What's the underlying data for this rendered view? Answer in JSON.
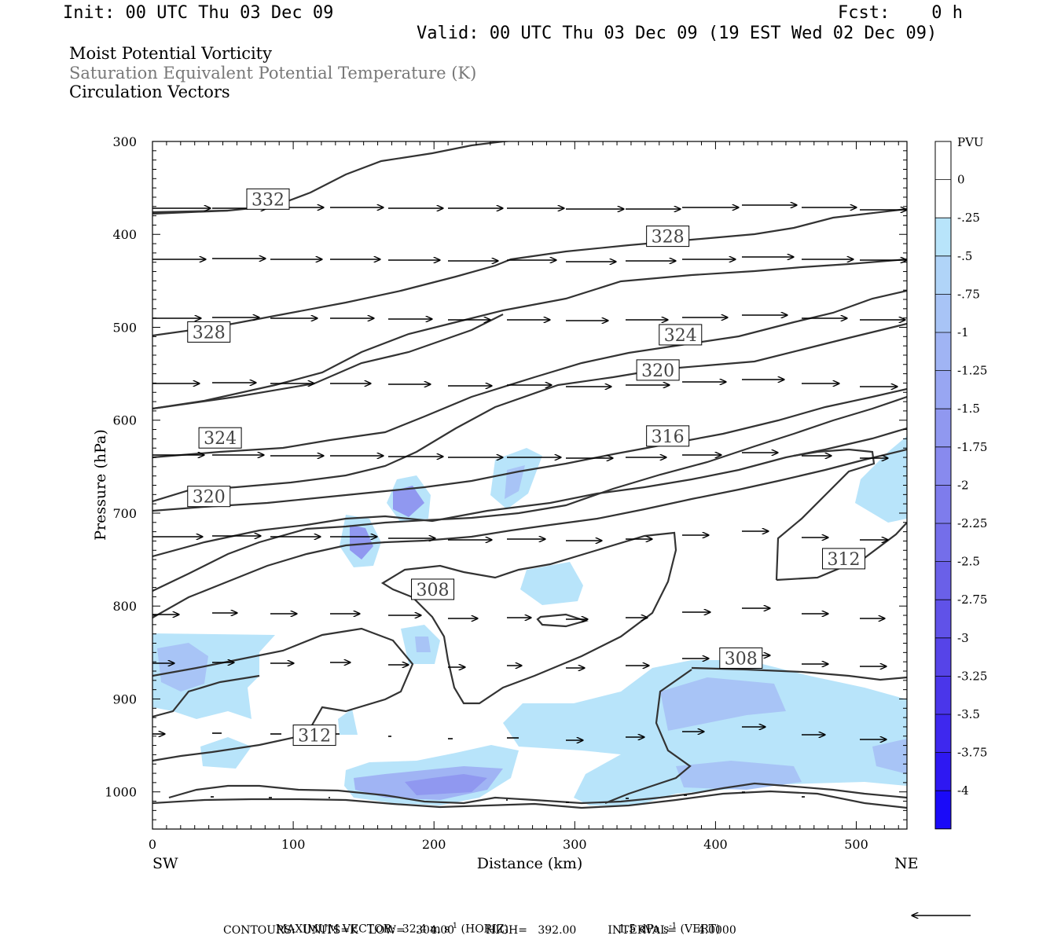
{
  "header": {
    "init": "Init: 00 UTC Thu 03 Dec 09",
    "fcst": "Fcst:    0 h",
    "valid": "Valid: 00 UTC Thu 03 Dec 09 (19 EST Wed 02 Dec 09)",
    "field1": "Moist Potential Vorticity",
    "field2": "Saturation Equivalent Potential Temperature (K)",
    "field3": "Circulation Vectors"
  },
  "chart_data": {
    "type": "contour",
    "ylabel": "Pressure (hPa)",
    "xlabel": "Distance (km)",
    "x_left_label": "SW",
    "x_right_label": "NE",
    "xlim": [
      0,
      536
    ],
    "ylim": [
      1040,
      300
    ],
    "x_ticks": [
      0,
      100,
      200,
      300,
      400,
      500
    ],
    "y_ticks": [
      300,
      400,
      500,
      600,
      700,
      800,
      900,
      1000
    ],
    "colorbar": {
      "units": "PVU",
      "levels": [
        "0",
        "-.25",
        "-.5",
        "-.75",
        "-1",
        "-1.25",
        "-1.5",
        "-1.75",
        "-2",
        "-2.25",
        "-2.5",
        "-2.75",
        "-3",
        "-3.25",
        "-3.5",
        "-3.75",
        "-4"
      ],
      "colors": [
        "#ffffff",
        "#ffffff",
        "#b8e4fa",
        "#b0d4f8",
        "#a8c4f6",
        "#a0b4f4",
        "#98a6f2",
        "#9098f0",
        "#888aee",
        "#7e7cec",
        "#746eea",
        "#6a60e8",
        "#6052e8",
        "#5644e8",
        "#4a36ea",
        "#3e28ee",
        "#2e18f2",
        "#1a0af8"
      ]
    },
    "contour_labels": [
      {
        "text": "332",
        "x": 67,
        "p": 373
      },
      {
        "text": "328",
        "x": 351,
        "p": 413
      },
      {
        "text": "328",
        "x": 25,
        "p": 516
      },
      {
        "text": "324",
        "x": 360,
        "p": 519
      },
      {
        "text": "320",
        "x": 344,
        "p": 557
      },
      {
        "text": "324",
        "x": 33,
        "p": 630
      },
      {
        "text": "316",
        "x": 351,
        "p": 628
      },
      {
        "text": "320",
        "x": 25,
        "p": 693
      },
      {
        "text": "312",
        "x": 476,
        "p": 760
      },
      {
        "text": "308",
        "x": 184,
        "p": 793
      },
      {
        "text": "308",
        "x": 403,
        "p": 867
      },
      {
        "text": "312",
        "x": 100,
        "p": 950
      }
    ],
    "footer": {
      "max_vector": "MAXIMUM VECTOR:  32.4 m s",
      "max_vector_sup": "-1",
      "horiz": " (HORIZ)",
      "vert_val": "1.5 dPa s",
      "vert_sup": "-1",
      "vert": " (VERT)",
      "contours": "CONTOURS:  UNITS=K   LOW=   304.00         HIGH=   392.00         INTERVAL=      4.0000"
    }
  }
}
